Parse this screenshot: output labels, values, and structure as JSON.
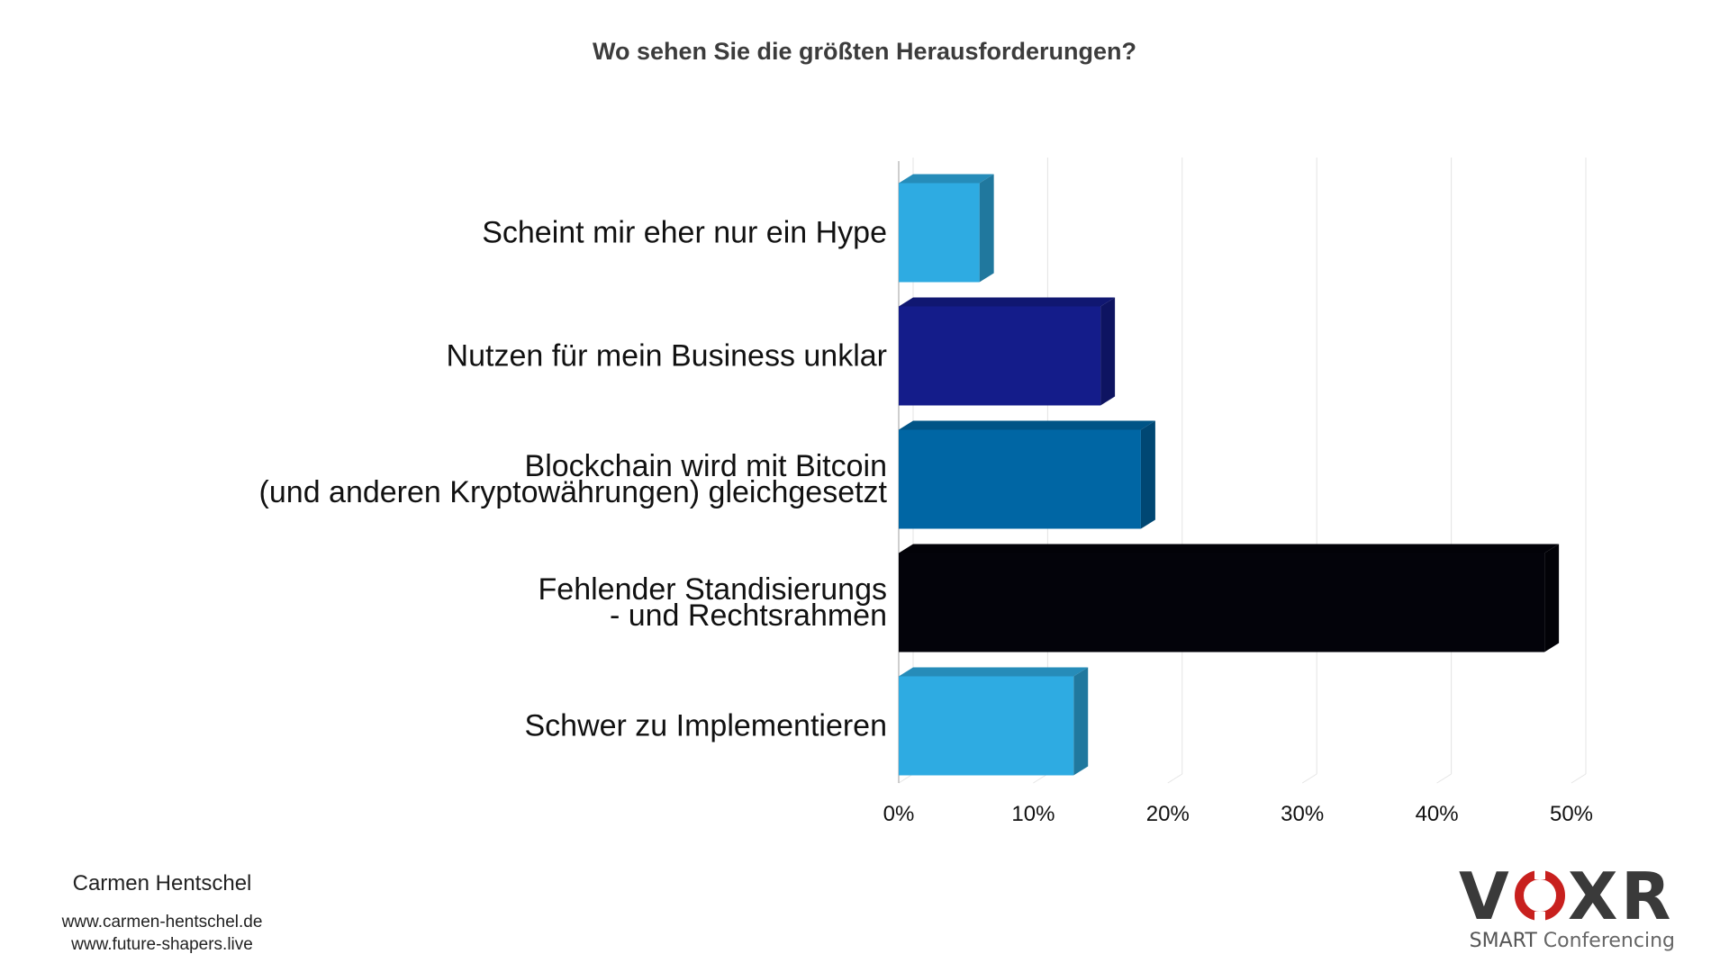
{
  "chart_data": {
    "type": "bar",
    "orientation": "horizontal",
    "style": "3d",
    "title": "Wo sehen Sie die größten Herausforderungen?",
    "categories": [
      [
        "Scheint mir eher nur ein Hype"
      ],
      [
        "Nutzen für mein Business unklar"
      ],
      [
        "Blockchain wird mit Bitcoin",
        "(und anderen Kryptowährungen) gleichgesetzt"
      ],
      [
        "Fehlender Standisierungs",
        "- und Rechtsrahmen"
      ],
      [
        "Schwer zu Implementieren"
      ]
    ],
    "values": [
      6,
      15,
      18,
      48,
      13
    ],
    "colors": [
      "#2eabe2",
      "#141c8a",
      "#0066a4",
      "#03030a",
      "#2eabe2"
    ],
    "xlim": [
      0,
      50
    ],
    "xticks": [
      0,
      10,
      20,
      30,
      40,
      50
    ],
    "tick_labels": [
      "0%",
      "10%",
      "20%",
      "30%",
      "40%",
      "50%"
    ],
    "grid": true,
    "legend": "none"
  },
  "footer": {
    "author": "Carmen Hentschel",
    "links": [
      "www.carmen-hentschel.de",
      "www.future-shapers.live"
    ]
  },
  "logo": {
    "letters": [
      "V",
      "X",
      "R"
    ],
    "tagline_strong": "SMART",
    "tagline_rest": " Conferencing",
    "ring_color": "#c8201e",
    "text_color": "#3a3a3a"
  }
}
